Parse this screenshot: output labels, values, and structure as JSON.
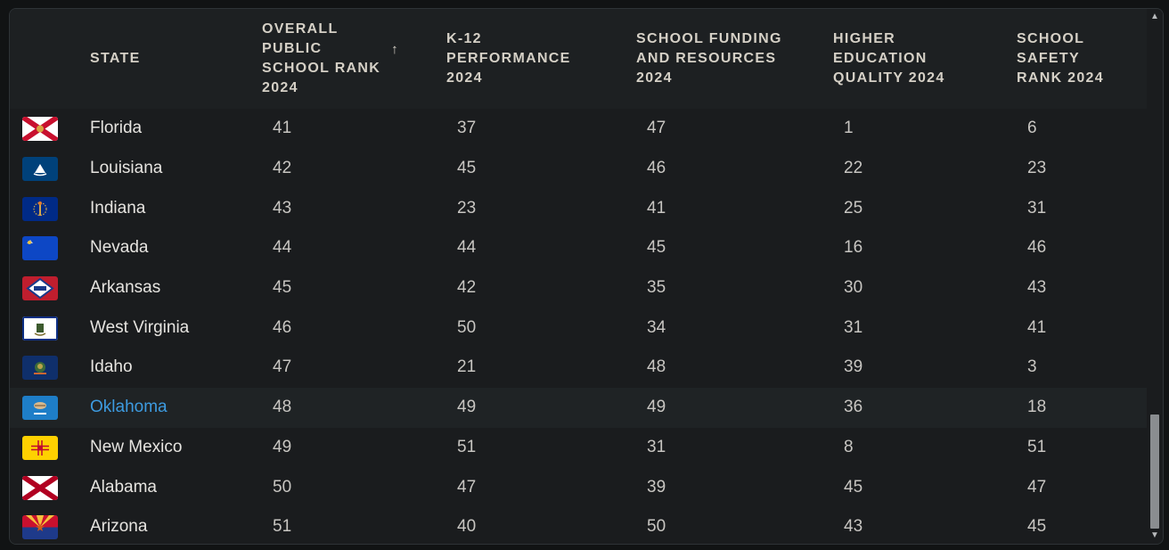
{
  "headers": {
    "state": "STATE",
    "overall": "OVERALL\nPUBLIC\nSCHOOL RANK\n2024",
    "k12": "K-12\nPERFORMANCE\n2024",
    "funding": "SCHOOL FUNDING\nAND RESOURCES\n2024",
    "higher_ed": "HIGHER\nEDUCATION\nQUALITY 2024",
    "safety": "SCHOOL\nSAFETY\nRANK 2024",
    "sort_indicator": "↑"
  },
  "rows": [
    {
      "state": "Florida",
      "flag": "florida-flag-icon",
      "overall": "41",
      "k12": "37",
      "funding": "47",
      "higher_ed": "1",
      "safety": "6"
    },
    {
      "state": "Louisiana",
      "flag": "louisiana-flag-icon",
      "overall": "42",
      "k12": "45",
      "funding": "46",
      "higher_ed": "22",
      "safety": "23"
    },
    {
      "state": "Indiana",
      "flag": "indiana-flag-icon",
      "overall": "43",
      "k12": "23",
      "funding": "41",
      "higher_ed": "25",
      "safety": "31"
    },
    {
      "state": "Nevada",
      "flag": "nevada-flag-icon",
      "overall": "44",
      "k12": "44",
      "funding": "45",
      "higher_ed": "16",
      "safety": "46"
    },
    {
      "state": "Arkansas",
      "flag": "arkansas-flag-icon",
      "overall": "45",
      "k12": "42",
      "funding": "35",
      "higher_ed": "30",
      "safety": "43"
    },
    {
      "state": "West Virginia",
      "flag": "west-virginia-flag-icon",
      "overall": "46",
      "k12": "50",
      "funding": "34",
      "higher_ed": "31",
      "safety": "41"
    },
    {
      "state": "Idaho",
      "flag": "idaho-flag-icon",
      "overall": "47",
      "k12": "21",
      "funding": "48",
      "higher_ed": "39",
      "safety": "3"
    },
    {
      "state": "Oklahoma",
      "flag": "oklahoma-flag-icon",
      "overall": "48",
      "k12": "49",
      "funding": "49",
      "higher_ed": "36",
      "safety": "18"
    },
    {
      "state": "New Mexico",
      "flag": "new-mexico-flag-icon",
      "overall": "49",
      "k12": "51",
      "funding": "31",
      "higher_ed": "8",
      "safety": "51"
    },
    {
      "state": "Alabama",
      "flag": "alabama-flag-icon",
      "overall": "50",
      "k12": "47",
      "funding": "39",
      "higher_ed": "45",
      "safety": "47"
    },
    {
      "state": "Arizona",
      "flag": "arizona-flag-icon",
      "overall": "51",
      "k12": "40",
      "funding": "50",
      "higher_ed": "43",
      "safety": "45"
    }
  ],
  "highlighted_state": "Oklahoma",
  "colors": {
    "background": "#1a1c1e",
    "header_text": "#d5d0c6",
    "cell_text": "#c8c6c2",
    "highlight_link": "#3d9be0"
  }
}
